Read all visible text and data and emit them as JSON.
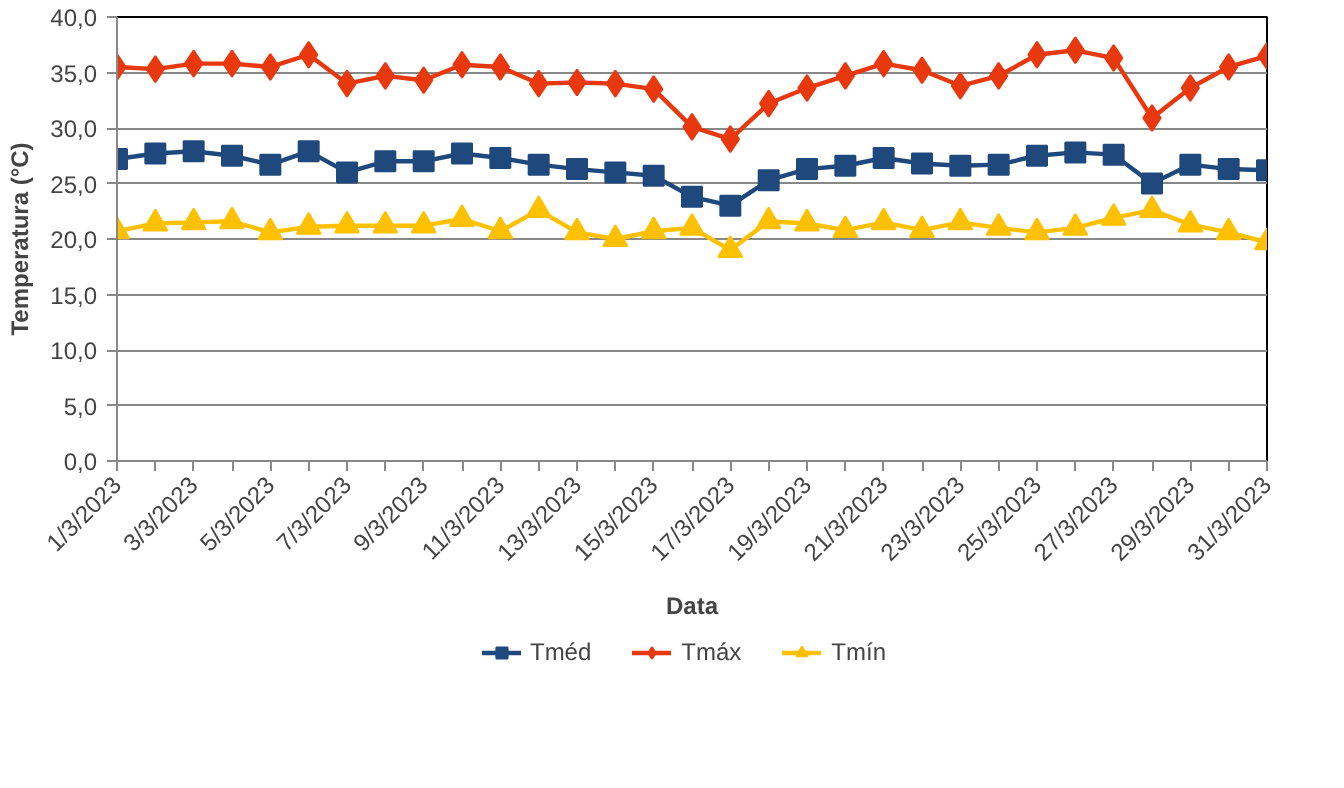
{
  "chart_data": {
    "type": "line",
    "xlabel": "Data",
    "ylabel": "Temperatura (°C)",
    "categories": [
      "1/3/2023",
      null,
      "3/3/2023",
      null,
      "5/3/2023",
      null,
      "7/3/2023",
      null,
      "9/3/2023",
      null,
      "11/3/2023",
      null,
      "13/3/2023",
      null,
      "15/3/2023",
      null,
      "17/3/2023",
      null,
      "19/3/2023",
      null,
      "21/3/2023",
      null,
      "23/3/2023",
      null,
      "25/3/2023",
      null,
      "27/3/2023",
      null,
      "29/3/2023",
      null,
      "31/3/2023"
    ],
    "series": [
      {
        "name": "Tméd",
        "color": "#1f497d",
        "marker": "square",
        "values": [
          27.2,
          27.7,
          27.9,
          27.5,
          26.7,
          27.9,
          26.0,
          27.0,
          27.0,
          27.7,
          27.3,
          26.7,
          26.3,
          26.0,
          25.7,
          23.8,
          23.0,
          25.3,
          26.3,
          26.6,
          27.3,
          26.8,
          26.6,
          26.7,
          27.5,
          27.8,
          27.6,
          25.0,
          26.7,
          26.3,
          26.2
        ]
      },
      {
        "name": "Tmáx",
        "color": "#e8380d",
        "marker": "diamond",
        "values": [
          35.5,
          35.3,
          35.8,
          35.8,
          35.5,
          36.6,
          34.0,
          34.7,
          34.3,
          35.7,
          35.5,
          34.0,
          34.1,
          34.0,
          33.5,
          30.1,
          29.0,
          32.2,
          33.6,
          34.7,
          35.8,
          35.2,
          33.8,
          34.7,
          36.6,
          37.0,
          36.3,
          30.9,
          33.6,
          35.5,
          36.5
        ]
      },
      {
        "name": "Tmín",
        "color": "#ffc000",
        "marker": "triangle",
        "values": [
          20.7,
          21.4,
          21.5,
          21.6,
          20.6,
          21.1,
          21.2,
          21.2,
          21.2,
          21.8,
          20.7,
          22.6,
          20.6,
          20.0,
          20.7,
          21.0,
          19.0,
          21.6,
          21.4,
          20.8,
          21.5,
          20.8,
          21.5,
          21.0,
          20.6,
          21.0,
          21.9,
          22.6,
          21.3,
          20.6,
          19.7
        ]
      }
    ],
    "ylim": [
      0,
      40
    ],
    "yticks": [
      {
        "value": 0,
        "label": "0,0"
      },
      {
        "value": 5,
        "label": "5,0"
      },
      {
        "value": 10,
        "label": "10,0"
      },
      {
        "value": 15,
        "label": "15,0"
      },
      {
        "value": 20,
        "label": "20,0"
      },
      {
        "value": 25,
        "label": "25,0"
      },
      {
        "value": 30,
        "label": "30,0"
      },
      {
        "value": 35,
        "label": "35,0"
      },
      {
        "value": 40,
        "label": "40,0"
      }
    ],
    "grid": "y",
    "legend": "bottom",
    "line_style": "solid"
  }
}
